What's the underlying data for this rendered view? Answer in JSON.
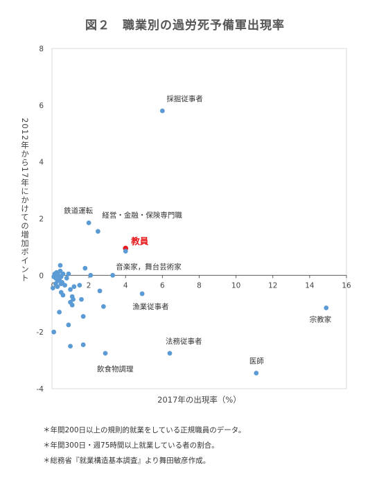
{
  "title": "図２　職業別の過労死予備軍出現率",
  "notes": [
    "＊年間200日以上の規則的就業をしている正規職員のデータ。",
    "＊年間300日・週75時間以上就業している者の割合。",
    "＊総務省『就業構造基本調査』より舞田敏彦作成。"
  ],
  "chart_data": {
    "type": "scatter",
    "title": "図２　職業別の過労死予備軍出現率",
    "xlabel": "2017年の出現率（%）",
    "ylabel": "2012年から17年にかけての増加ポイント",
    "xlim": [
      0,
      16
    ],
    "ylim": [
      -4,
      8
    ],
    "xticks": [
      2,
      4,
      6,
      8,
      10,
      12,
      14,
      16
    ],
    "xtick_labels": [
      "2",
      "4",
      "6",
      "8",
      "10",
      "12",
      "14",
      "16"
    ],
    "yticks": [
      -4,
      -2,
      0,
      2,
      4,
      6,
      8
    ],
    "ytick_labels": [
      "-4",
      "-2",
      "0",
      "2",
      "4",
      "6",
      "8"
    ],
    "origin_label": "0",
    "grid": false,
    "point_color": "#5b9bd5",
    "highlight_color": "#e8191c",
    "labeled_points": [
      {
        "label": "採掘従事者",
        "x": 6.0,
        "y": 5.8
      },
      {
        "label": "鉄道運転",
        "x": 2.0,
        "y": 1.85
      },
      {
        "label": "経営・金融・保険専門職",
        "x": 2.5,
        "y": 1.55
      },
      {
        "label": "教員",
        "x": 4.0,
        "y": 0.95,
        "highlight": true
      },
      {
        "label": "音楽家，舞台芸術家",
        "x": 4.0,
        "y": 0.85
      },
      {
        "label": "漁業従事者",
        "x": 4.9,
        "y": -0.65
      },
      {
        "label": "宗教家",
        "x": 14.9,
        "y": -1.15
      },
      {
        "label": "法務従事者",
        "x": 6.4,
        "y": -2.75
      },
      {
        "label": "飲食物調理",
        "x": 2.9,
        "y": -2.75
      },
      {
        "label": "医師",
        "x": 11.1,
        "y": -3.45
      }
    ],
    "other_points": [
      {
        "x": 0.1,
        "y": -0.05
      },
      {
        "x": 0.15,
        "y": 0.05
      },
      {
        "x": 0.2,
        "y": -0.1
      },
      {
        "x": 0.25,
        "y": 0.1
      },
      {
        "x": 0.3,
        "y": -0.2
      },
      {
        "x": 0.35,
        "y": 0.0
      },
      {
        "x": 0.4,
        "y": -0.15
      },
      {
        "x": 0.45,
        "y": 0.15
      },
      {
        "x": 0.5,
        "y": -0.05
      },
      {
        "x": 0.55,
        "y": -0.25
      },
      {
        "x": 0.6,
        "y": 0.05
      },
      {
        "x": 0.2,
        "y": -0.3
      },
      {
        "x": 0.3,
        "y": -0.4
      },
      {
        "x": 0.5,
        "y": -0.3
      },
      {
        "x": 0.05,
        "y": -0.45
      },
      {
        "x": 0.45,
        "y": 0.35
      },
      {
        "x": 0.5,
        "y": -0.6
      },
      {
        "x": 0.6,
        "y": -0.7
      },
      {
        "x": 0.7,
        "y": -0.35
      },
      {
        "x": 0.8,
        "y": -0.1
      },
      {
        "x": 0.9,
        "y": 0.05
      },
      {
        "x": 1.0,
        "y": -0.5
      },
      {
        "x": 1.1,
        "y": -0.75
      },
      {
        "x": 1.2,
        "y": -0.4
      },
      {
        "x": 1.15,
        "y": -0.85
      },
      {
        "x": 1.0,
        "y": -0.95
      },
      {
        "x": 1.1,
        "y": -1.05
      },
      {
        "x": 1.5,
        "y": -0.35
      },
      {
        "x": 1.6,
        "y": -0.85
      },
      {
        "x": 1.8,
        "y": 0.25
      },
      {
        "x": 1.7,
        "y": -1.45
      },
      {
        "x": 2.1,
        "y": 0.0
      },
      {
        "x": 2.6,
        "y": -0.55
      },
      {
        "x": 3.3,
        "y": 0.0
      },
      {
        "x": 2.8,
        "y": -1.1
      },
      {
        "x": 0.4,
        "y": -1.3
      },
      {
        "x": 0.9,
        "y": -1.75
      },
      {
        "x": 0.1,
        "y": -2.0
      },
      {
        "x": 1.0,
        "y": -2.5
      },
      {
        "x": 1.7,
        "y": -2.45
      }
    ]
  }
}
